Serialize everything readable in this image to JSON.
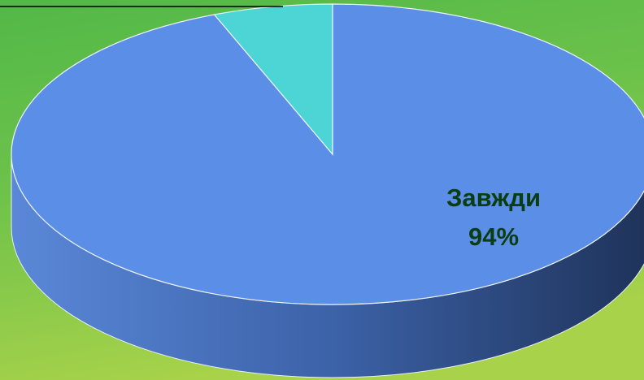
{
  "chart_data": {
    "type": "pie",
    "categories": [
      "Завжди",
      null
    ],
    "values": [
      94,
      6
    ],
    "value_labels": [
      "94%",
      null
    ],
    "colors": [
      "#5b8ee6",
      "#4dd4d4"
    ]
  }
}
